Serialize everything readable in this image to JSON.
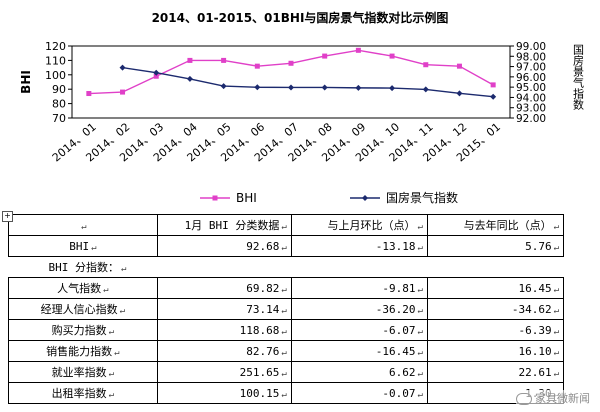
{
  "chart_data": {
    "type": "line",
    "title": "2014、01-2015、01BHI与国房景气指数对比示例图",
    "xlabel": "",
    "ylabel": "BHI",
    "y2label": "国房景气指数",
    "ylim": [
      70,
      120
    ],
    "y2lim": [
      92,
      99
    ],
    "yticks": [
      "70",
      "80",
      "90",
      "100",
      "110",
      "120"
    ],
    "y2ticks": [
      "92.00",
      "93.00",
      "94.00",
      "95.00",
      "96.00",
      "97.00",
      "98.00",
      "99.00"
    ],
    "categories": [
      "2014、01",
      "2014、02",
      "2014、03",
      "2014、04",
      "2014、05",
      "2014、06",
      "2014、07",
      "2014、08",
      "2014、09",
      "2014、10",
      "2014、11",
      "2014、12",
      "2015、01"
    ],
    "series": [
      {
        "name": "BHI",
        "axis": "left",
        "color": "#e040c8",
        "marker": "square",
        "values": [
          87,
          88,
          99,
          110,
          110,
          106,
          108,
          113,
          117,
          113,
          107,
          106,
          93
        ]
      },
      {
        "name": "国房景气指数",
        "axis": "right",
        "color": "#1c2a6e",
        "marker": "diamond",
        "values": [
          null,
          96.9,
          96.4,
          95.8,
          95.1,
          94.99,
          94.97,
          94.97,
          94.93,
          94.91,
          94.78,
          94.4,
          94.07
        ]
      }
    ],
    "legend": "bottom"
  },
  "table": {
    "handle": "+",
    "header": [
      "",
      "1月 BHI 分类数据",
      "与上月环比（点）",
      "与去年同比（点）"
    ],
    "rows": [
      {
        "label": "BHI",
        "cells": [
          "92.68",
          "-13.18",
          "5.76"
        ]
      },
      {
        "label": "BHI 分指数：",
        "cells": [],
        "subheading": true
      },
      {
        "label": "人气指数",
        "cells": [
          "69.82",
          "-9.81",
          "16.45"
        ]
      },
      {
        "label": "经理人信心指数",
        "cells": [
          "73.14",
          "-36.20",
          "-34.62"
        ]
      },
      {
        "label": "购买力指数",
        "cells": [
          "118.68",
          "-6.07",
          "-6.39"
        ]
      },
      {
        "label": "销售能力指数",
        "cells": [
          "82.76",
          "-16.45",
          "16.10"
        ]
      },
      {
        "label": "就业率指数",
        "cells": [
          "251.65",
          "6.62",
          "22.61"
        ]
      },
      {
        "label": "出租率指数",
        "cells": [
          "100.15",
          "-0.07",
          "1.30"
        ]
      }
    ]
  },
  "watermark": "家具微新闻"
}
